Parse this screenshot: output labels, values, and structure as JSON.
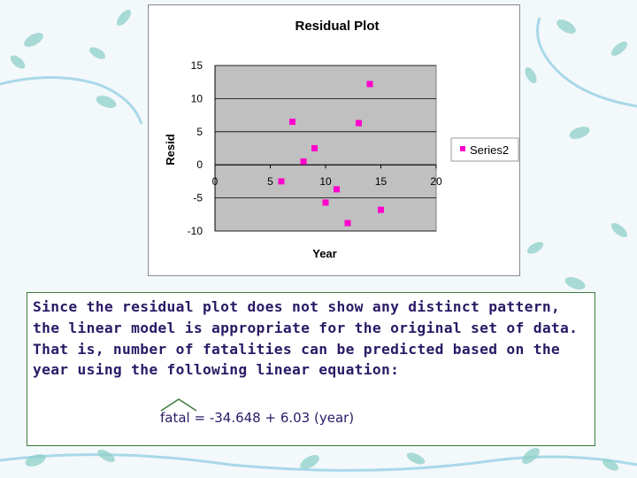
{
  "chart_data": {
    "type": "scatter",
    "title": "Residual Plot",
    "xlabel": "Year",
    "ylabel": "Resid",
    "xlim": [
      0,
      20
    ],
    "ylim": [
      -10,
      15
    ],
    "xticks": [
      0,
      5,
      10,
      15,
      20
    ],
    "yticks": [
      -10,
      -5,
      0,
      5,
      10,
      15
    ],
    "grid": "horizontal",
    "legend": "right",
    "plot_background": "#c0c0c0",
    "series": [
      {
        "name": "Series2",
        "color": "#ff00cc",
        "points": [
          {
            "x": 6,
            "y": -2.5
          },
          {
            "x": 7,
            "y": 6.5
          },
          {
            "x": 8,
            "y": 0.5
          },
          {
            "x": 9,
            "y": 2.5
          },
          {
            "x": 10,
            "y": -5.7
          },
          {
            "x": 11,
            "y": -3.7
          },
          {
            "x": 12,
            "y": -8.8
          },
          {
            "x": 13,
            "y": 6.3
          },
          {
            "x": 14,
            "y": 12.2
          },
          {
            "x": 15,
            "y": -6.8
          }
        ]
      }
    ]
  },
  "caption": {
    "text": "Since the residual plot does not show any distinct pattern, the linear model is appropriate for the original set of data.  That is, number of fatalities can be predicted based on the year using the following linear equation:",
    "equation": "fatal  =  -34.648 + 6.03 (year)"
  },
  "colors": {
    "caption_text": "#2a1a66",
    "caption_border": "#3c7a3c",
    "leaf": "#8fd0c8"
  }
}
